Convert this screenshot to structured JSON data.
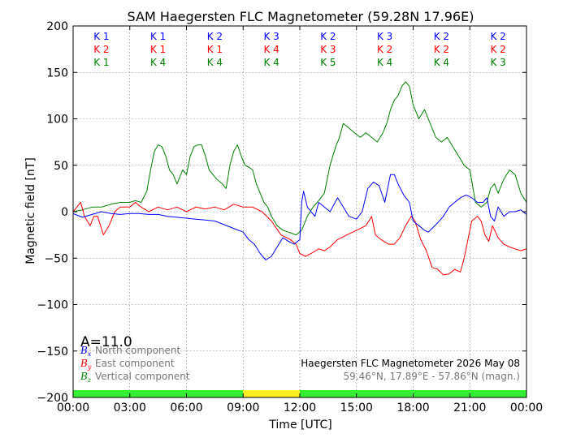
{
  "chart_data": {
    "type": "line",
    "title": "SAM Haegersten FLC Magnetometer (59.28N 17.96E)",
    "xlabel": "Time [UTC]",
    "ylabel": "Magnetic field [nT]",
    "xlim": [
      0,
      24
    ],
    "ylim": [
      -200,
      200
    ],
    "x_ticks": [
      "00:00",
      "03:00",
      "06:00",
      "09:00",
      "12:00",
      "15:00",
      "18:00",
      "21:00",
      "00:00"
    ],
    "y_ticks": [
      "200",
      "150",
      "100",
      "50",
      "0",
      "−50",
      "−100",
      "−150",
      "−200"
    ],
    "grid": true,
    "a_index": "A=11.0",
    "legend": {
      "placement": "bottom-left",
      "entries": [
        {
          "symbol": "B",
          "sub": "x",
          "label": "North component",
          "color": "#0000ff"
        },
        {
          "symbol": "B",
          "sub": "y",
          "label": "East component",
          "color": "#ff0000"
        },
        {
          "symbol": "B",
          "sub": "z",
          "label": "Vertical component",
          "color": "#008000"
        }
      ]
    },
    "info": {
      "line1": "Haegersten FLC Magnetometer 2026 May 08",
      "line2": "59.46°N, 17.89°E - 57.86°N (magn.)"
    },
    "k_indices": {
      "rows": [
        {
          "color": "#0000ff",
          "values": [
            "K 1",
            "K 1",
            "K 2",
            "K 3",
            "K 2",
            "K 3",
            "K 2",
            "K 2"
          ]
        },
        {
          "color": "#ff0000",
          "values": [
            "K 2",
            "K 1",
            "K 1",
            "K 4",
            "K 3",
            "K 2",
            "K 2",
            "K 2"
          ]
        },
        {
          "color": "#008000",
          "values": [
            "K 1",
            "K 4",
            "K 4",
            "K 4",
            "K 5",
            "K 4",
            "K 4",
            "K 3"
          ]
        }
      ]
    },
    "activity_bar": [
      {
        "start": 0,
        "end": 9,
        "color": "#33ee33"
      },
      {
        "start": 9,
        "end": 12,
        "color": "#ffee22"
      },
      {
        "start": 12,
        "end": 24,
        "color": "#33ee33"
      }
    ],
    "series": [
      {
        "name": "North component",
        "color": "#0000ff",
        "points": [
          [
            0,
            -2
          ],
          [
            0.5,
            -6
          ],
          [
            1,
            -3
          ],
          [
            1.5,
            0
          ],
          [
            2,
            -2
          ],
          [
            2.5,
            -3
          ],
          [
            3,
            -2
          ],
          [
            3.5,
            -2
          ],
          [
            4,
            -3
          ],
          [
            4.5,
            -3
          ],
          [
            5,
            -5
          ],
          [
            5.5,
            -6
          ],
          [
            6,
            -7
          ],
          [
            6.5,
            -8
          ],
          [
            7,
            -9
          ],
          [
            7.5,
            -10
          ],
          [
            8,
            -14
          ],
          [
            8.5,
            -18
          ],
          [
            9,
            -22
          ],
          [
            9.3,
            -30
          ],
          [
            9.6,
            -35
          ],
          [
            9.9,
            -45
          ],
          [
            10.2,
            -52
          ],
          [
            10.5,
            -48
          ],
          [
            10.8,
            -38
          ],
          [
            11.1,
            -28
          ],
          [
            11.4,
            -32
          ],
          [
            11.7,
            -35
          ],
          [
            12,
            -30
          ],
          [
            12.1,
            10
          ],
          [
            12.2,
            22
          ],
          [
            12.4,
            5
          ],
          [
            12.6,
            0
          ],
          [
            12.8,
            -5
          ],
          [
            13,
            10
          ],
          [
            13.3,
            5
          ],
          [
            13.6,
            0
          ],
          [
            14,
            15
          ],
          [
            14.3,
            5
          ],
          [
            14.6,
            -5
          ],
          [
            15,
            -8
          ],
          [
            15.3,
            0
          ],
          [
            15.6,
            25
          ],
          [
            15.9,
            32
          ],
          [
            16.2,
            28
          ],
          [
            16.5,
            10
          ],
          [
            16.8,
            40
          ],
          [
            17,
            40
          ],
          [
            17.2,
            30
          ],
          [
            17.5,
            18
          ],
          [
            17.8,
            10
          ],
          [
            18,
            -10
          ],
          [
            18.3,
            -15
          ],
          [
            18.6,
            -20
          ],
          [
            18.8,
            -22
          ],
          [
            19,
            -18
          ],
          [
            19.3,
            -12
          ],
          [
            19.6,
            -5
          ],
          [
            19.9,
            5
          ],
          [
            20.2,
            10
          ],
          [
            20.5,
            15
          ],
          [
            20.8,
            18
          ],
          [
            21.1,
            15
          ],
          [
            21.4,
            10
          ],
          [
            21.7,
            10
          ],
          [
            21.9,
            15
          ],
          [
            22.1,
            -5
          ],
          [
            22.3,
            -10
          ],
          [
            22.5,
            5
          ],
          [
            22.8,
            -5
          ],
          [
            23.1,
            0
          ],
          [
            23.4,
            0
          ],
          [
            23.7,
            2
          ],
          [
            24,
            -3
          ]
        ]
      },
      {
        "name": "East component",
        "color": "#ff0000",
        "points": [
          [
            0,
            0
          ],
          [
            0.4,
            10
          ],
          [
            0.6,
            -5
          ],
          [
            0.9,
            -15
          ],
          [
            1.1,
            -5
          ],
          [
            1.3,
            -5
          ],
          [
            1.6,
            -25
          ],
          [
            1.9,
            -15
          ],
          [
            2.2,
            0
          ],
          [
            2.5,
            5
          ],
          [
            3,
            5
          ],
          [
            3.3,
            10
          ],
          [
            3.6,
            5
          ],
          [
            4,
            0
          ],
          [
            4.5,
            5
          ],
          [
            5,
            2
          ],
          [
            5.5,
            5
          ],
          [
            6,
            0
          ],
          [
            6.5,
            5
          ],
          [
            7,
            3
          ],
          [
            7.5,
            5
          ],
          [
            8,
            2
          ],
          [
            8.5,
            8
          ],
          [
            9,
            5
          ],
          [
            9.5,
            5
          ],
          [
            10,
            0
          ],
          [
            10.5,
            -10
          ],
          [
            11,
            -25
          ],
          [
            11.5,
            -30
          ],
          [
            11.8,
            -35
          ],
          [
            12,
            -45
          ],
          [
            12.3,
            -48
          ],
          [
            12.6,
            -45
          ],
          [
            13,
            -40
          ],
          [
            13.3,
            -42
          ],
          [
            13.6,
            -38
          ],
          [
            14,
            -30
          ],
          [
            14.5,
            -25
          ],
          [
            15,
            -20
          ],
          [
            15.5,
            -15
          ],
          [
            15.8,
            -5
          ],
          [
            16,
            -25
          ],
          [
            16.3,
            -30
          ],
          [
            16.7,
            -35
          ],
          [
            17,
            -35
          ],
          [
            17.3,
            -28
          ],
          [
            17.6,
            -15
          ],
          [
            17.9,
            -5
          ],
          [
            18.1,
            -10
          ],
          [
            18.4,
            -30
          ],
          [
            18.7,
            -42
          ],
          [
            19,
            -60
          ],
          [
            19.3,
            -62
          ],
          [
            19.6,
            -68
          ],
          [
            19.9,
            -67
          ],
          [
            20.2,
            -62
          ],
          [
            20.5,
            -65
          ],
          [
            20.7,
            -50
          ],
          [
            20.9,
            -30
          ],
          [
            21.1,
            -10
          ],
          [
            21.4,
            -5
          ],
          [
            21.6,
            -10
          ],
          [
            21.8,
            -25
          ],
          [
            22,
            -32
          ],
          [
            22.2,
            -15
          ],
          [
            22.5,
            -28
          ],
          [
            22.8,
            -35
          ],
          [
            23.1,
            -38
          ],
          [
            23.4,
            -40
          ],
          [
            23.7,
            -42
          ],
          [
            24,
            -40
          ]
        ]
      },
      {
        "name": "Vertical component",
        "color": "#008000",
        "points": [
          [
            0,
            0
          ],
          [
            0.5,
            2
          ],
          [
            1,
            5
          ],
          [
            1.5,
            5
          ],
          [
            2,
            8
          ],
          [
            2.5,
            10
          ],
          [
            3,
            10
          ],
          [
            3.3,
            12
          ],
          [
            3.6,
            10
          ],
          [
            3.9,
            22
          ],
          [
            4.1,
            45
          ],
          [
            4.3,
            65
          ],
          [
            4.5,
            72
          ],
          [
            4.7,
            70
          ],
          [
            4.9,
            60
          ],
          [
            5.1,
            45
          ],
          [
            5.3,
            40
          ],
          [
            5.5,
            30
          ],
          [
            5.8,
            45
          ],
          [
            6,
            40
          ],
          [
            6.2,
            60
          ],
          [
            6.4,
            70
          ],
          [
            6.6,
            72
          ],
          [
            6.8,
            72
          ],
          [
            7,
            60
          ],
          [
            7.2,
            45
          ],
          [
            7.4,
            40
          ],
          [
            7.6,
            35
          ],
          [
            7.9,
            30
          ],
          [
            8.1,
            25
          ],
          [
            8.3,
            50
          ],
          [
            8.5,
            65
          ],
          [
            8.7,
            72
          ],
          [
            8.9,
            60
          ],
          [
            9.1,
            50
          ],
          [
            9.3,
            48
          ],
          [
            9.5,
            45
          ],
          [
            9.7,
            30
          ],
          [
            9.9,
            20
          ],
          [
            10.1,
            10
          ],
          [
            10.3,
            5
          ],
          [
            10.5,
            -5
          ],
          [
            10.8,
            -15
          ],
          [
            11.1,
            -20
          ],
          [
            11.4,
            -22
          ],
          [
            11.8,
            -25
          ],
          [
            12.1,
            -20
          ],
          [
            12.4,
            -5
          ],
          [
            12.7,
            5
          ],
          [
            13,
            12
          ],
          [
            13.3,
            20
          ],
          [
            13.6,
            50
          ],
          [
            13.9,
            70
          ],
          [
            14.1,
            80
          ],
          [
            14.3,
            95
          ],
          [
            14.6,
            90
          ],
          [
            14.9,
            85
          ],
          [
            15.2,
            80
          ],
          [
            15.5,
            85
          ],
          [
            15.8,
            80
          ],
          [
            16.1,
            75
          ],
          [
            16.4,
            85
          ],
          [
            16.6,
            95
          ],
          [
            16.8,
            110
          ],
          [
            17,
            120
          ],
          [
            17.2,
            125
          ],
          [
            17.4,
            135
          ],
          [
            17.6,
            140
          ],
          [
            17.8,
            135
          ],
          [
            18,
            115
          ],
          [
            18.3,
            100
          ],
          [
            18.6,
            110
          ],
          [
            18.9,
            95
          ],
          [
            19.2,
            80
          ],
          [
            19.5,
            75
          ],
          [
            19.8,
            80
          ],
          [
            20.1,
            70
          ],
          [
            20.4,
            60
          ],
          [
            20.7,
            50
          ],
          [
            21,
            45
          ],
          [
            21.3,
            10
          ],
          [
            21.6,
            5
          ],
          [
            21.9,
            10
          ],
          [
            22.1,
            25
          ],
          [
            22.3,
            30
          ],
          [
            22.5,
            20
          ],
          [
            22.8,
            35
          ],
          [
            23.1,
            45
          ],
          [
            23.4,
            40
          ],
          [
            23.7,
            20
          ],
          [
            24,
            10
          ]
        ]
      }
    ]
  }
}
